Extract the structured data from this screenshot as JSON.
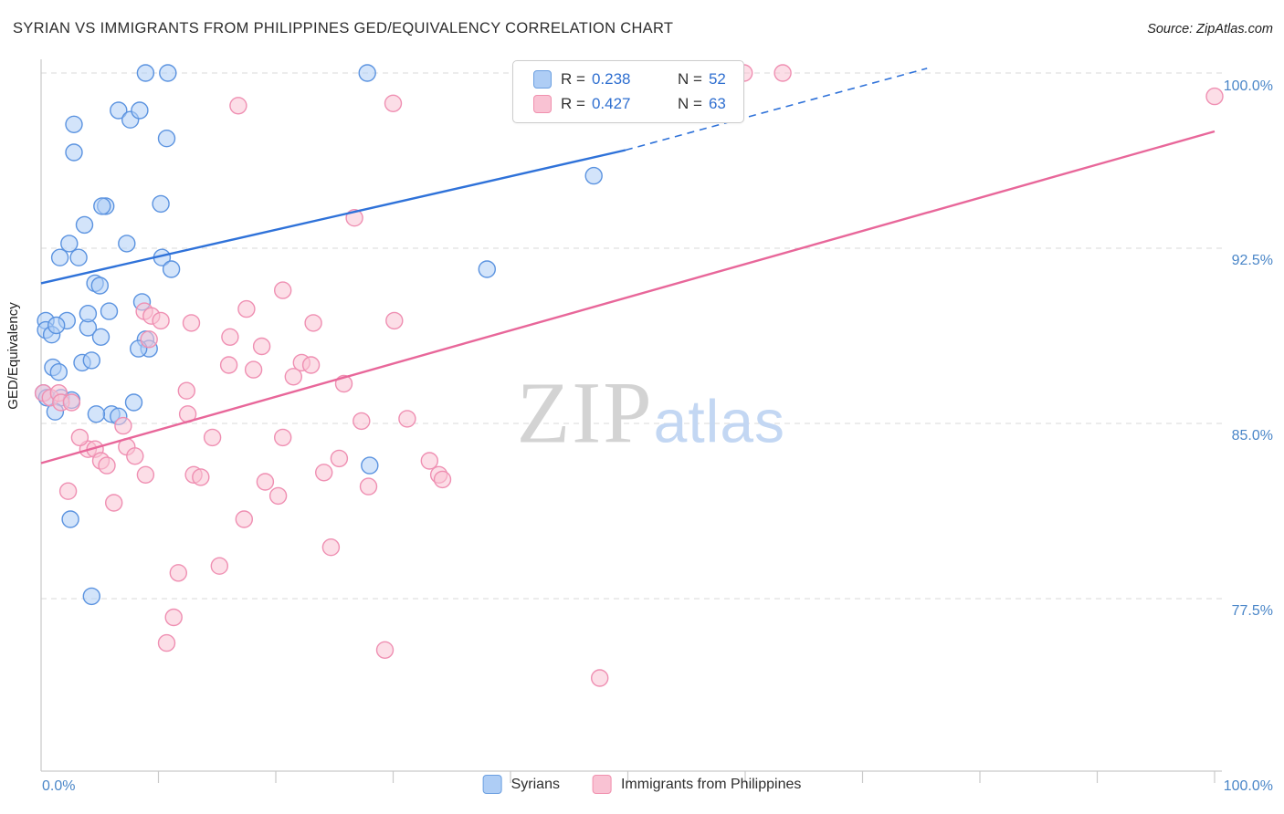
{
  "header": {
    "title": "SYRIAN VS IMMIGRANTS FROM PHILIPPINES GED/EQUIVALENCY CORRELATION CHART",
    "source": "Source: ZipAtlas.com"
  },
  "watermark": {
    "zip": "ZIP",
    "atlas": "atlas"
  },
  "legend_box": {
    "series": [
      {
        "r_label": "R =",
        "r_value": "0.238",
        "n_label": "N =",
        "n_value": "52"
      },
      {
        "r_label": "R =",
        "r_value": "0.427",
        "n_label": "N =",
        "n_value": "63"
      }
    ]
  },
  "axes": {
    "y_label": "GED/Equivalency",
    "x_min_label": "0.0%",
    "x_max_label": "100.0%"
  },
  "bottom_legend": [
    {
      "label": "Syrians"
    },
    {
      "label": "Immigrants from Philippines"
    }
  ],
  "chart_data": {
    "type": "scatter",
    "title": "SYRIAN VS IMMIGRANTS FROM PHILIPPINES GED/EQUIVALENCY CORRELATION CHART",
    "xlabel": "",
    "ylabel": "GED/Equivalency",
    "x_range_pct": [
      0,
      100
    ],
    "y_ticks": [
      {
        "value": 100.0,
        "label": "100.0%"
      },
      {
        "value": 92.5,
        "label": "92.5%"
      },
      {
        "value": 85.0,
        "label": "85.0%"
      },
      {
        "value": 77.5,
        "label": "77.5%"
      }
    ],
    "grid": true,
    "legend_position": "top-center",
    "style": {
      "grid_color": "#d9d9d9",
      "axis_color": "#c9c9c9",
      "accent_text": "#2f6fd0",
      "tick_label_color": "#4a86c8"
    },
    "series": [
      {
        "name": "Syrians",
        "R": 0.238,
        "N": 52,
        "color": "#5b93e0",
        "fill": "#aecdf5",
        "points": [
          [
            8.9,
            100.0
          ],
          [
            10.8,
            100.0
          ],
          [
            27.8,
            100.0
          ],
          [
            2.8,
            97.8
          ],
          [
            6.6,
            98.4
          ],
          [
            7.6,
            98.0
          ],
          [
            8.4,
            98.4
          ],
          [
            10.7,
            97.2
          ],
          [
            2.8,
            96.6
          ],
          [
            5.5,
            94.3
          ],
          [
            5.2,
            94.3
          ],
          [
            10.2,
            94.4
          ],
          [
            3.7,
            93.5
          ],
          [
            2.4,
            92.7
          ],
          [
            7.3,
            92.7
          ],
          [
            1.6,
            92.1
          ],
          [
            3.2,
            92.1
          ],
          [
            10.3,
            92.1
          ],
          [
            11.1,
            91.6
          ],
          [
            38.0,
            91.6
          ],
          [
            4.6,
            91.0
          ],
          [
            5.0,
            90.9
          ],
          [
            5.8,
            89.8
          ],
          [
            8.6,
            90.2
          ],
          [
            0.4,
            89.4
          ],
          [
            2.2,
            89.4
          ],
          [
            0.4,
            89.0
          ],
          [
            0.9,
            88.8
          ],
          [
            4.0,
            89.1
          ],
          [
            5.1,
            88.7
          ],
          [
            8.9,
            88.6
          ],
          [
            9.2,
            88.2
          ],
          [
            8.3,
            88.2
          ],
          [
            1.0,
            87.4
          ],
          [
            1.5,
            87.2
          ],
          [
            3.5,
            87.6
          ],
          [
            4.3,
            87.7
          ],
          [
            0.2,
            86.3
          ],
          [
            0.5,
            86.1
          ],
          [
            1.7,
            86.1
          ],
          [
            2.6,
            86.0
          ],
          [
            1.2,
            85.5
          ],
          [
            6.0,
            85.4
          ],
          [
            6.6,
            85.3
          ],
          [
            7.9,
            85.9
          ],
          [
            4.7,
            85.4
          ],
          [
            28.0,
            83.2
          ],
          [
            2.5,
            80.9
          ],
          [
            4.3,
            77.6
          ],
          [
            47.1,
            95.6
          ],
          [
            1.3,
            89.2
          ],
          [
            4.0,
            89.7
          ]
        ]
      },
      {
        "name": "Immigrants from Philippines",
        "R": 0.427,
        "N": 63,
        "color": "#ef8fb2",
        "fill": "#f9c2d3",
        "points": [
          [
            59.9,
            100.0
          ],
          [
            63.2,
            100.0
          ],
          [
            100.0,
            99.0
          ],
          [
            16.8,
            98.6
          ],
          [
            30.0,
            98.7
          ],
          [
            26.7,
            93.8
          ],
          [
            20.6,
            90.7
          ],
          [
            8.8,
            89.8
          ],
          [
            9.4,
            89.6
          ],
          [
            10.2,
            89.4
          ],
          [
            12.8,
            89.3
          ],
          [
            16.1,
            88.7
          ],
          [
            23.2,
            89.3
          ],
          [
            30.1,
            89.4
          ],
          [
            17.5,
            89.9
          ],
          [
            9.2,
            88.6
          ],
          [
            18.8,
            88.3
          ],
          [
            18.1,
            87.3
          ],
          [
            16.0,
            87.5
          ],
          [
            22.2,
            87.6
          ],
          [
            23.0,
            87.5
          ],
          [
            25.8,
            86.7
          ],
          [
            21.5,
            87.0
          ],
          [
            0.2,
            86.3
          ],
          [
            0.8,
            86.1
          ],
          [
            1.5,
            86.3
          ],
          [
            1.7,
            85.9
          ],
          [
            2.6,
            85.9
          ],
          [
            12.4,
            86.4
          ],
          [
            27.3,
            85.1
          ],
          [
            31.2,
            85.2
          ],
          [
            14.6,
            84.4
          ],
          [
            4.0,
            83.9
          ],
          [
            4.6,
            83.9
          ],
          [
            7.3,
            84.0
          ],
          [
            8.0,
            83.6
          ],
          [
            5.1,
            83.4
          ],
          [
            5.6,
            83.2
          ],
          [
            13.0,
            82.8
          ],
          [
            13.6,
            82.7
          ],
          [
            25.4,
            83.5
          ],
          [
            24.1,
            82.9
          ],
          [
            33.9,
            82.8
          ],
          [
            34.2,
            82.6
          ],
          [
            19.1,
            82.5
          ],
          [
            27.9,
            82.3
          ],
          [
            2.3,
            82.1
          ],
          [
            20.2,
            81.9
          ],
          [
            6.2,
            81.6
          ],
          [
            17.3,
            80.9
          ],
          [
            24.7,
            79.7
          ],
          [
            11.7,
            78.6
          ],
          [
            15.2,
            78.9
          ],
          [
            11.3,
            76.7
          ],
          [
            10.7,
            75.6
          ],
          [
            29.3,
            75.3
          ],
          [
            47.6,
            74.1
          ],
          [
            7.0,
            84.9
          ],
          [
            3.3,
            84.4
          ],
          [
            8.9,
            82.8
          ],
          [
            12.5,
            85.4
          ],
          [
            20.6,
            84.4
          ],
          [
            33.1,
            83.4
          ]
        ]
      }
    ],
    "trend_lines": [
      {
        "series": "Syrians",
        "style": "solid",
        "color": "#2f72d9",
        "from": [
          0,
          91.0
        ],
        "to": [
          49.8,
          96.7
        ]
      },
      {
        "series": "Syrians",
        "style": "dashed",
        "color": "#2f72d9",
        "from": [
          49.8,
          96.7
        ],
        "to": [
          75.5,
          100.2
        ]
      },
      {
        "series": "Immigrants from Philippines",
        "style": "solid",
        "color": "#e8679a",
        "from": [
          0,
          83.3
        ],
        "to": [
          100,
          97.5
        ]
      }
    ]
  }
}
